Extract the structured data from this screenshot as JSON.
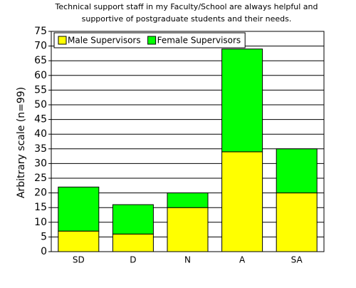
{
  "chart_data": {
    "type": "stacked_bar",
    "title": [
      "Technical support staff in my Faculty/School are always helpful and",
      "supportive of postgraduate students and their needs."
    ],
    "y_label": "Arbitrary scale (n=99)",
    "categories": [
      "SD",
      "D",
      "N",
      "A",
      "SA"
    ],
    "series": [
      {
        "name": "Male Supervisors",
        "color": "#ffff00",
        "values": [
          7,
          6,
          15,
          34,
          20
        ]
      },
      {
        "name": "Female Supervisors",
        "color": "#00ff00",
        "values": [
          15,
          10,
          5,
          35,
          15
        ]
      }
    ],
    "ylim": [
      0,
      75
    ],
    "yticks": [
      0,
      5,
      10,
      15,
      20,
      25,
      30,
      35,
      40,
      45,
      50,
      55,
      60,
      65,
      70,
      75
    ],
    "grid": true,
    "legend": "top-left"
  }
}
